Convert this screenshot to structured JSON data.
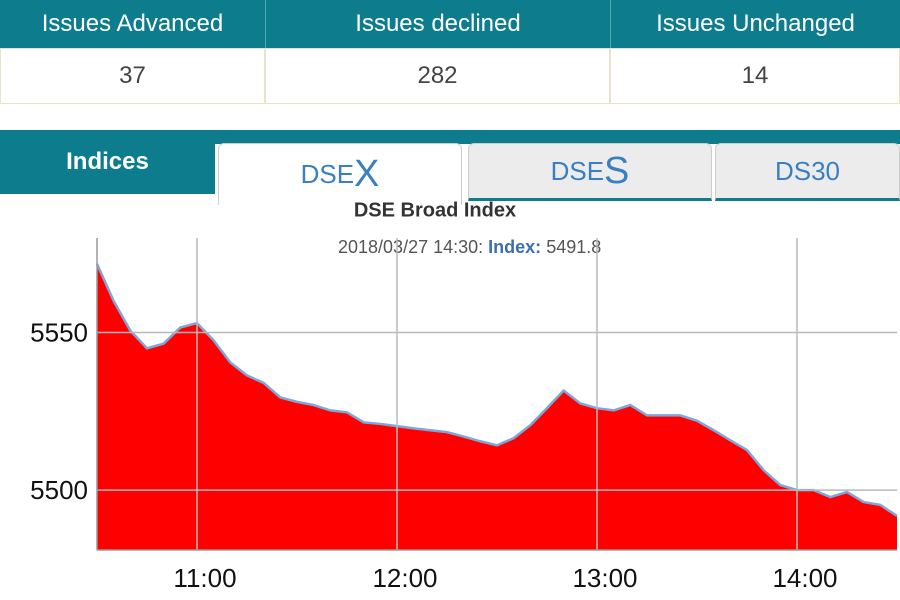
{
  "table": {
    "headers": [
      "Issues Advanced",
      "Issues declined",
      "Issues Unchanged"
    ],
    "rows": [
      [
        37,
        282,
        14
      ]
    ]
  },
  "tabs": [
    "Indices",
    {
      "prefix": "DSE",
      "suffix": "X"
    },
    {
      "prefix": "DSE",
      "suffix": "S"
    },
    "DS30"
  ],
  "chart_data": {
    "type": "area",
    "title": "DSE Broad Index",
    "tooltip": {
      "time": "2018/03/27 14:30:",
      "label": "Index:",
      "value": 5491.8
    },
    "x": [
      630,
      635,
      640,
      645,
      650,
      655,
      660,
      665,
      670,
      675,
      680,
      685,
      690,
      695,
      700,
      705,
      710,
      715,
      720,
      725,
      730,
      735,
      740,
      745,
      750,
      755,
      760,
      765,
      770,
      775,
      780,
      785,
      790,
      795,
      800,
      805,
      810,
      815,
      820,
      825,
      830,
      835,
      840,
      845,
      850,
      855,
      860,
      865,
      870
    ],
    "series": [
      {
        "name": "Index",
        "color": "#ff0000",
        "line_color": "#7ea6d8",
        "values": [
          5571.8,
          5560.0,
          5550.6,
          5545.0,
          5546.5,
          5551.6,
          5553.0,
          5547.5,
          5540.5,
          5536.4,
          5534.0,
          5529.4,
          5528.0,
          5527.0,
          5525.3,
          5524.7,
          5521.5,
          5521.0,
          5520.3,
          5519.6,
          5519.0,
          5518.4,
          5517.0,
          5515.5,
          5514.2,
          5516.5,
          5520.6,
          5526.0,
          5531.6,
          5527.5,
          5526.0,
          5525.3,
          5527.0,
          5523.7,
          5523.7,
          5523.7,
          5522.0,
          5519.0,
          5515.8,
          5512.7,
          5506.3,
          5501.6,
          5500.0,
          5500.0,
          5497.8,
          5499.4,
          5496.2,
          5495.3,
          5491.8
        ]
      }
    ],
    "xlim": [
      630,
      870
    ],
    "xticks": [
      {
        "value": 660,
        "label": "11:00"
      },
      {
        "value": 720,
        "label": "12:00"
      },
      {
        "value": 780,
        "label": "13:00"
      },
      {
        "value": 840,
        "label": "14:00"
      }
    ],
    "ylim": [
      5481,
      5580
    ],
    "yticks": [
      5500,
      5550
    ],
    "grid": true
  }
}
